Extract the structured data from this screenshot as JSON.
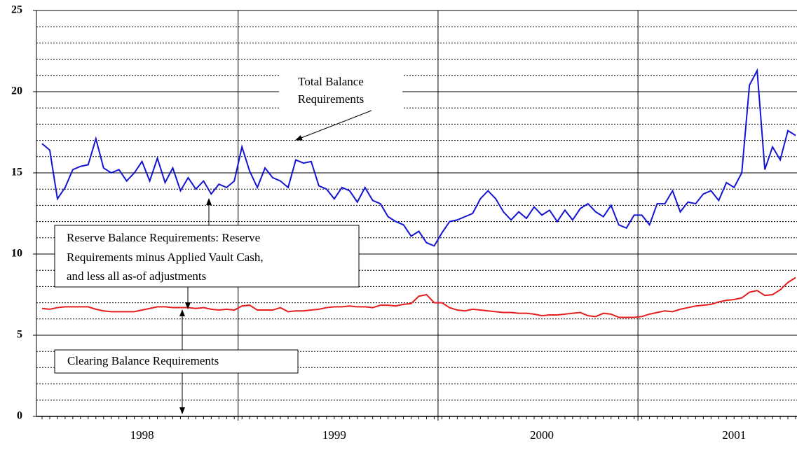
{
  "chart_data": {
    "type": "line",
    "categories": [
      null,
      null,
      null,
      null,
      null,
      null,
      null,
      null,
      null,
      null,
      null,
      null,
      null,
      "1998",
      null,
      null,
      null,
      null,
      null,
      null,
      null,
      null,
      null,
      null,
      null,
      null,
      null,
      null,
      null,
      null,
      null,
      null,
      null,
      null,
      null,
      null,
      null,
      null,
      "1999",
      null,
      null,
      null,
      null,
      null,
      null,
      null,
      null,
      null,
      null,
      null,
      null,
      null,
      null,
      null,
      null,
      null,
      null,
      null,
      null,
      null,
      null,
      null,
      null,
      null,
      null,
      "2000",
      null,
      null,
      null,
      null,
      null,
      null,
      null,
      null,
      null,
      null,
      null,
      null,
      null,
      null,
      null,
      null,
      null,
      null,
      null,
      null,
      null,
      null,
      null,
      null,
      "2001",
      null,
      null,
      null,
      null,
      null,
      null,
      null,
      null
    ],
    "series": [
      {
        "name": "Total Balance Requirements",
        "color": "#1414d2",
        "values": [
          16.8,
          16.4,
          13.4,
          14.1,
          15.2,
          15.4,
          15.5,
          17.1,
          15.3,
          15.0,
          15.2,
          14.5,
          15.0,
          15.7,
          14.5,
          15.9,
          14.4,
          15.3,
          13.9,
          14.7,
          14.0,
          14.5,
          13.7,
          14.3,
          14.1,
          14.5,
          16.6,
          15.1,
          14.1,
          15.3,
          14.7,
          14.5,
          14.1,
          15.8,
          15.6,
          15.7,
          14.2,
          14.0,
          13.4,
          14.1,
          13.9,
          13.2,
          14.1,
          13.3,
          13.1,
          12.3,
          12.0,
          11.8,
          11.1,
          11.4,
          10.7,
          10.5,
          11.3,
          12.0,
          12.1,
          12.3,
          12.5,
          13.4,
          13.9,
          13.4,
          12.6,
          12.1,
          12.6,
          12.2,
          12.9,
          12.4,
          12.7,
          12.0,
          12.7,
          12.1,
          12.8,
          13.1,
          12.6,
          12.3,
          13.0,
          11.8,
          11.6,
          12.4,
          12.4,
          11.8,
          13.1,
          13.1,
          13.9,
          12.6,
          13.2,
          13.1,
          13.7,
          13.9,
          13.3,
          14.4,
          14.1,
          15.0,
          20.4,
          21.3,
          15.2,
          16.6,
          15.8,
          17.6,
          17.3
        ]
      },
      {
        "name": "Clearing Balance Requirements",
        "color": "#e61e1e",
        "values": [
          6.65,
          6.6,
          6.7,
          6.75,
          6.75,
          6.75,
          6.75,
          6.6,
          6.5,
          6.45,
          6.45,
          6.45,
          6.45,
          6.55,
          6.65,
          6.75,
          6.75,
          6.7,
          6.7,
          6.7,
          6.65,
          6.7,
          6.6,
          6.55,
          6.6,
          6.55,
          6.8,
          6.85,
          6.55,
          6.55,
          6.55,
          6.7,
          6.45,
          6.5,
          6.5,
          6.55,
          6.6,
          6.7,
          6.75,
          6.75,
          6.8,
          6.75,
          6.75,
          6.7,
          6.85,
          6.85,
          6.8,
          6.9,
          6.95,
          7.4,
          7.5,
          7.0,
          7.0,
          6.7,
          6.55,
          6.5,
          6.6,
          6.55,
          6.5,
          6.45,
          6.4,
          6.4,
          6.35,
          6.35,
          6.3,
          6.2,
          6.25,
          6.25,
          6.3,
          6.35,
          6.4,
          6.2,
          6.15,
          6.35,
          6.3,
          6.1,
          6.1,
          6.1,
          6.15,
          6.3,
          6.4,
          6.5,
          6.45,
          6.6,
          6.7,
          6.8,
          6.85,
          6.9,
          7.05,
          7.15,
          7.2,
          7.3,
          7.65,
          7.75,
          7.45,
          7.5,
          7.8,
          8.25,
          8.55
        ]
      }
    ],
    "ylim": [
      0,
      25
    ],
    "yticks": [
      0,
      5,
      10,
      15,
      20,
      25
    ],
    "minor_gridlines": [
      1,
      2,
      3,
      4,
      6,
      7,
      8,
      9,
      11,
      12,
      13,
      14,
      16,
      17,
      18,
      19,
      21,
      22,
      23,
      24
    ],
    "grid": true,
    "annotations": {
      "total": [
        "Total Balance",
        "Requirements"
      ],
      "reserve": [
        "Reserve Balance Requirements:  Reserve",
        "Requirements minus Applied Vault Cash,",
        "and less all as-of adjustments"
      ],
      "clearing": [
        "Clearing Balance Requirements"
      ]
    }
  }
}
